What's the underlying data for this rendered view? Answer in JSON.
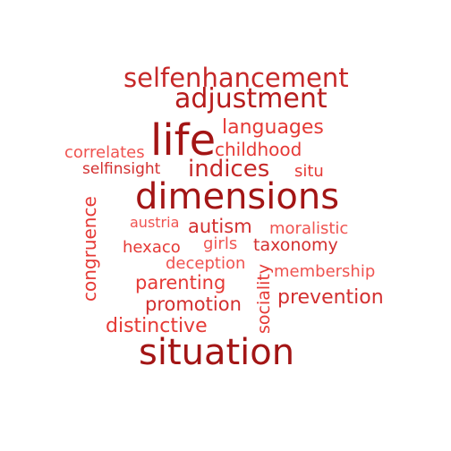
{
  "words": [
    {
      "id": "selfenhancement",
      "text": "selfenhancement",
      "color": "#c62828"
    },
    {
      "id": "adjustment",
      "text": "adjustment",
      "color": "#b71c1c"
    },
    {
      "id": "languages",
      "text": "languages",
      "color": "#e53935"
    },
    {
      "id": "life",
      "text": "life",
      "color": "#a31515"
    },
    {
      "id": "childhood",
      "text": "childhood",
      "color": "#e53935"
    },
    {
      "id": "correlates",
      "text": "correlates",
      "color": "#ef5350"
    },
    {
      "id": "selfinsight",
      "text": "selfinsight",
      "color": "#d32f2f"
    },
    {
      "id": "indices",
      "text": "indices",
      "color": "#c62828"
    },
    {
      "id": "situ",
      "text": "situ",
      "color": "#e53935"
    },
    {
      "id": "dimensions",
      "text": "dimensions",
      "color": "#a31515"
    },
    {
      "id": "austria",
      "text": "austria",
      "color": "#ef5350"
    },
    {
      "id": "autism",
      "text": "autism",
      "color": "#d32f2f"
    },
    {
      "id": "moralistic",
      "text": "moralistic",
      "color": "#ef5350"
    },
    {
      "id": "girls",
      "text": "girls",
      "color": "#ef5350"
    },
    {
      "id": "taxonomy",
      "text": "taxonomy",
      "color": "#d32f2f"
    },
    {
      "id": "hexaco",
      "text": "hexaco",
      "color": "#e53935"
    },
    {
      "id": "deception",
      "text": "deception",
      "color": "#ef5350"
    },
    {
      "id": "membership",
      "text": "membership",
      "color": "#ef5350"
    },
    {
      "id": "parenting",
      "text": "parenting",
      "color": "#e53935"
    },
    {
      "id": "prevention",
      "text": "prevention",
      "color": "#d32f2f"
    },
    {
      "id": "promotion",
      "text": "promotion",
      "color": "#d32f2f"
    },
    {
      "id": "distinctive",
      "text": "distinctive",
      "color": "#e53935"
    },
    {
      "id": "situation",
      "text": "situation",
      "color": "#a31515"
    },
    {
      "id": "congruence",
      "text": "congruence",
      "color": "#e53935"
    },
    {
      "id": "sociality",
      "text": "sociality",
      "color": "#e53935"
    }
  ]
}
